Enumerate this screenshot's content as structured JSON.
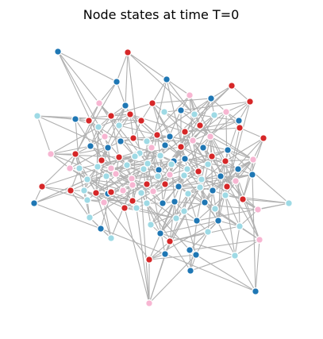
{
  "title": "Node states at time T=0",
  "colors": {
    "edge": "#b0b0b0",
    "node_border": "#ffffff",
    "dark_blue": "#1f77b4",
    "light_blue": "#9edae5",
    "red": "#d62728",
    "pink": "#f7b6d2"
  }
}
